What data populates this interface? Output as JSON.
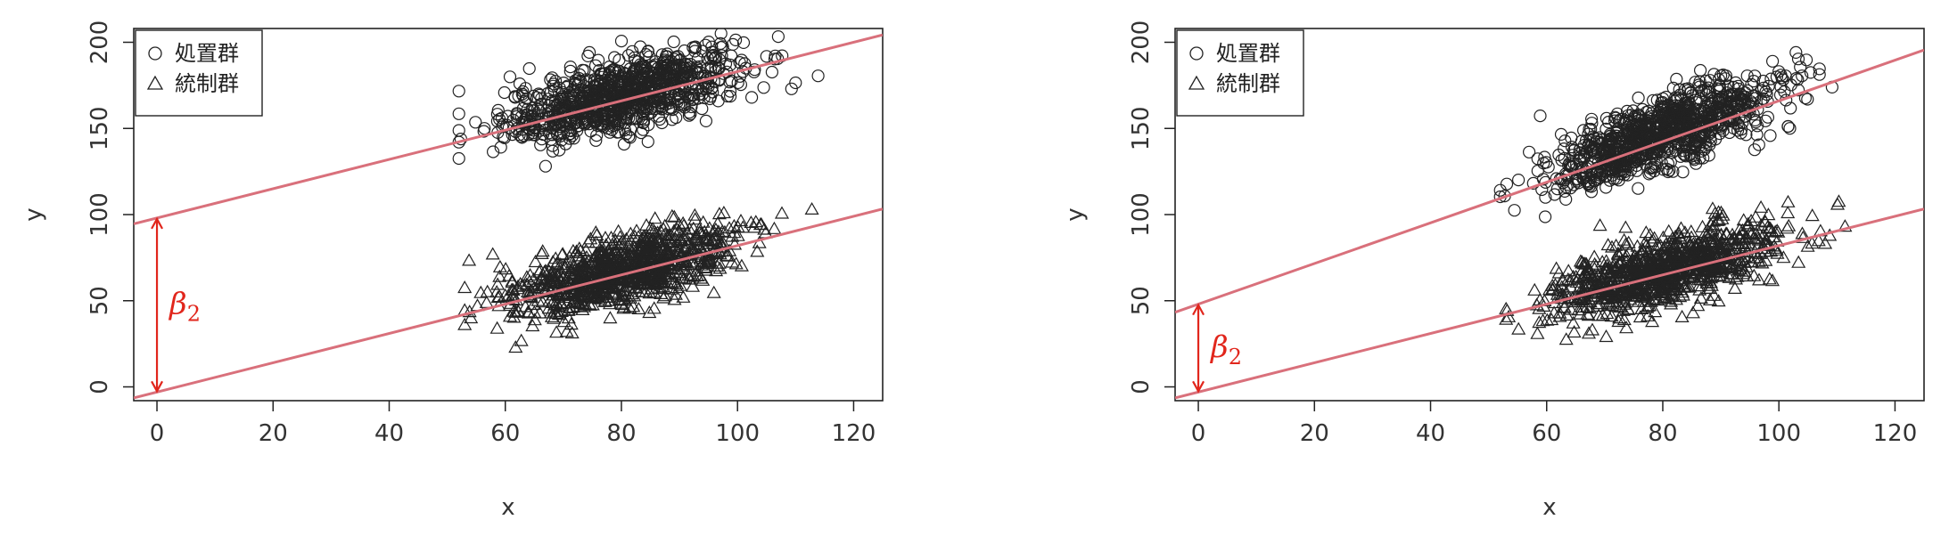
{
  "chart_data": [
    {
      "type": "scatter",
      "xlabel": "x",
      "ylabel": "y",
      "xlim": [
        -4,
        125
      ],
      "ylim": [
        -8,
        208
      ],
      "xticks": [
        0,
        20,
        40,
        60,
        80,
        100,
        120
      ],
      "yticks": [
        0,
        50,
        100,
        150,
        200
      ],
      "legend": {
        "position": "top-left",
        "entries": [
          {
            "label": "処置群",
            "marker": "circle"
          },
          {
            "label": "統制群",
            "marker": "triangle"
          }
        ]
      },
      "series": [
        {
          "name": "処置群",
          "marker": "circle",
          "x_range": [
            52,
            114
          ],
          "y_center_at_x80": 169,
          "approx_n": 1000
        },
        {
          "name": "統制群",
          "marker": "triangle",
          "x_range": [
            53,
            114
          ],
          "y_center_at_x80": 67,
          "approx_n": 1000
        }
      ],
      "lines": [
        {
          "label": "treatment_fit",
          "intercept": 98,
          "slope": 0.85,
          "color": "#d9707b"
        },
        {
          "label": "control_fit",
          "intercept": -3,
          "slope": 0.85,
          "color": "#d9707b"
        }
      ],
      "annotation": {
        "text": "β",
        "subscript": "2",
        "x": 0,
        "y_from": -3,
        "y_to": 98,
        "color": "#e1261c"
      }
    },
    {
      "type": "scatter",
      "xlabel": "x",
      "ylabel": "y",
      "xlim": [
        -4,
        125
      ],
      "ylim": [
        -8,
        208
      ],
      "xticks": [
        0,
        20,
        40,
        60,
        80,
        100,
        120
      ],
      "yticks": [
        0,
        50,
        100,
        150,
        200
      ],
      "legend": {
        "position": "top-left",
        "entries": [
          {
            "label": "処置群",
            "marker": "circle"
          },
          {
            "label": "統制群",
            "marker": "triangle"
          }
        ]
      },
      "series": [
        {
          "name": "処置群",
          "marker": "circle",
          "x_range": [
            52,
            114
          ],
          "y_center_at_x80": 147,
          "approx_n": 1000
        },
        {
          "name": "統制群",
          "marker": "triangle",
          "x_range": [
            53,
            114
          ],
          "y_center_at_x80": 67,
          "approx_n": 1000
        }
      ],
      "lines": [
        {
          "label": "treatment_fit",
          "intercept": 48,
          "slope": 1.18,
          "color": "#d9707b"
        },
        {
          "label": "control_fit",
          "intercept": -3,
          "slope": 0.85,
          "color": "#d9707b"
        }
      ],
      "annotation": {
        "text": "β",
        "subscript": "2",
        "x": 0,
        "y_from": -3,
        "y_to": 48,
        "color": "#e1261c"
      }
    }
  ]
}
